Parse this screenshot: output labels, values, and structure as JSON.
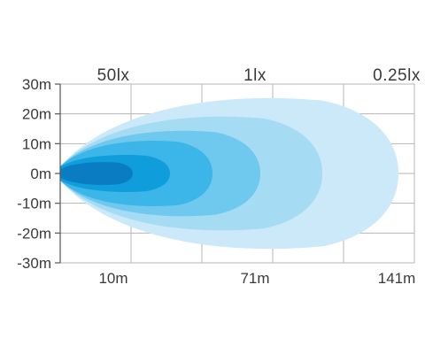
{
  "chart_data": {
    "type": "area",
    "title": "",
    "xlabel": "",
    "ylabel": "",
    "top_labels": [
      "50lx",
      "1lx",
      "0.25lx"
    ],
    "x_tick_labels": [
      "10m",
      "71m",
      "141m"
    ],
    "y_tick_labels": [
      "30m",
      "20m",
      "10m",
      "0m",
      "-10m",
      "-20m",
      "-30m"
    ],
    "y_ticks": [
      30,
      20,
      10,
      0,
      -10,
      -20,
      -30
    ],
    "ylim": [
      -30,
      30
    ],
    "x_axis_relative_range": [
      0,
      1
    ],
    "x_gridline_positions_relative": [
      0,
      0.2,
      0.4,
      0.6,
      0.8,
      1.0
    ],
    "x_tick_positions_relative": [
      0.2,
      0.6,
      1.0
    ],
    "grid": true,
    "series": [
      {
        "x_extent_relative": 0.955,
        "half_width_m": 26.5,
        "color": "#cbe9f9"
      },
      {
        "x_extent_relative": 0.74,
        "half_width_m": 20,
        "color": "#a6dbf4"
      },
      {
        "x_extent_relative": 0.565,
        "half_width_m": 15,
        "color": "#6fc9ef"
      },
      {
        "x_extent_relative": 0.43,
        "half_width_m": 11.5,
        "color": "#3cb5e8"
      },
      {
        "x_extent_relative": 0.31,
        "half_width_m": 6.5,
        "color": "#0f9edb"
      },
      {
        "x_extent_relative": 0.205,
        "half_width_m": 4,
        "color": "#0a7cc2"
      }
    ],
    "colors": {
      "grid": "#b4b4b4",
      "axis": "#555555",
      "text": "#3a3a3a"
    }
  }
}
